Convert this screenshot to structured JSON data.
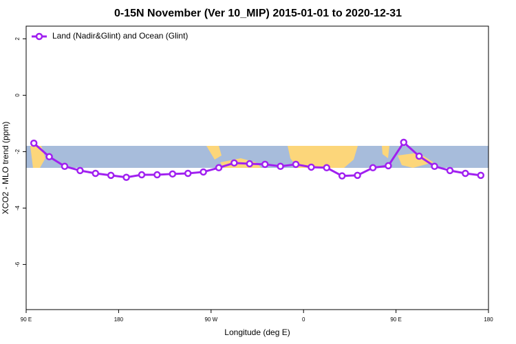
{
  "chart_data": {
    "type": "line",
    "title": "0-15N November (Ver 10_MIP)   2015-01-01 to 2020-12-31",
    "x_label": "Longitude (deg E)",
    "y_label": "XCO2 - MLO trend (ppm)",
    "x": [
      97.5,
      112.5,
      127.5,
      142.5,
      157.5,
      172.5,
      187.5,
      202.5,
      217.5,
      232.5,
      247.5,
      262.5,
      277.5,
      292.5,
      307.5,
      322.5,
      337.5,
      352.5,
      367.5,
      382.5,
      397.5,
      412.5,
      427.5,
      442.5,
      457.5,
      472.5,
      487.5,
      502.5,
      517.5,
      532.5
    ],
    "series": [
      {
        "name": "Land (Nadir&Glint) and Ocean (Glint)",
        "color": "#a020f0",
        "values": [
          -1.7,
          -2.18,
          -2.52,
          -2.67,
          -2.77,
          -2.84,
          -2.91,
          -2.82,
          -2.82,
          -2.79,
          -2.77,
          -2.72,
          -2.57,
          -2.4,
          -2.43,
          -2.45,
          -2.52,
          -2.45,
          -2.55,
          -2.57,
          -2.86,
          -2.84,
          -2.57,
          -2.5,
          -1.67,
          -2.16,
          -2.52,
          -2.67,
          -2.77,
          -2.84
        ]
      }
    ],
    "xlim": [
      90,
      540
    ],
    "xticks": [
      {
        "value": 90,
        "label": "90 E"
      },
      {
        "value": 180,
        "label": "180"
      },
      {
        "value": 270,
        "label": "90 W"
      },
      {
        "value": 360,
        "label": "0"
      },
      {
        "value": 450,
        "label": "90 E"
      },
      {
        "value": 540,
        "label": "180"
      }
    ],
    "ylim": [
      -7.6,
      2.45
    ],
    "yticks": [
      2,
      0,
      -2,
      -4,
      -6
    ],
    "legend": "top-left"
  }
}
